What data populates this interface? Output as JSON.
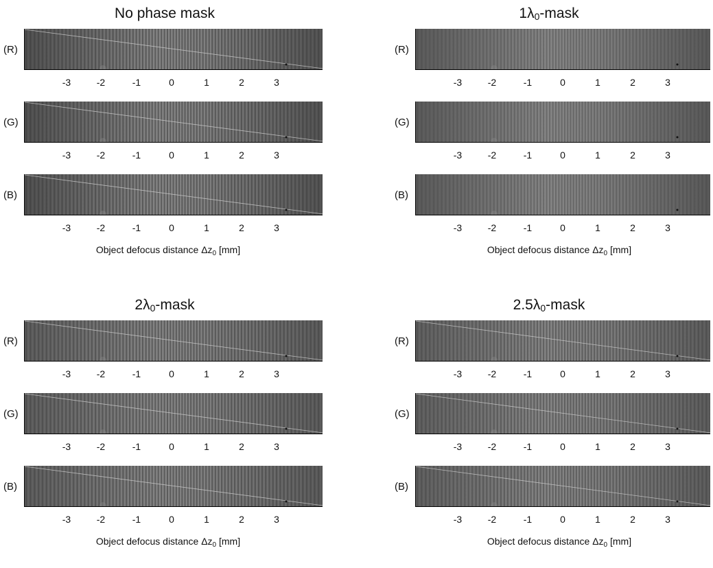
{
  "channel_labels": [
    "(R)",
    "(G)",
    "(B)"
  ],
  "x_ticks": [
    "-3",
    "-2",
    "-1",
    "0",
    "1",
    "2",
    "3"
  ],
  "x_label": {
    "main": "Object defocus distance Δz",
    "sub": "0",
    "unit": " [mm]"
  },
  "panels": [
    {
      "title_pre": "No phase mask",
      "title_sub": "",
      "title_post": "",
      "diag_line": true,
      "contrast": 0.9,
      "edge_dark": 0.55
    },
    {
      "title_pre": "1λ",
      "title_sub": "0",
      "title_post": "-mask",
      "diag_line": false,
      "contrast": 0.6,
      "edge_dark": 0.3
    },
    {
      "title_pre": "2λ",
      "title_sub": "0",
      "title_post": "-mask",
      "diag_line": true,
      "contrast": 0.9,
      "edge_dark": 0.2
    },
    {
      "title_pre": "2.5λ",
      "title_sub": "0",
      "title_post": "-mask",
      "diag_line": true,
      "contrast": 0.8,
      "edge_dark": 0.15
    }
  ],
  "colors": {
    "strip_base": "#4a4a4a",
    "fringe_light": "#9a9a9a",
    "fringe_dark": "#2e2e2e"
  }
}
